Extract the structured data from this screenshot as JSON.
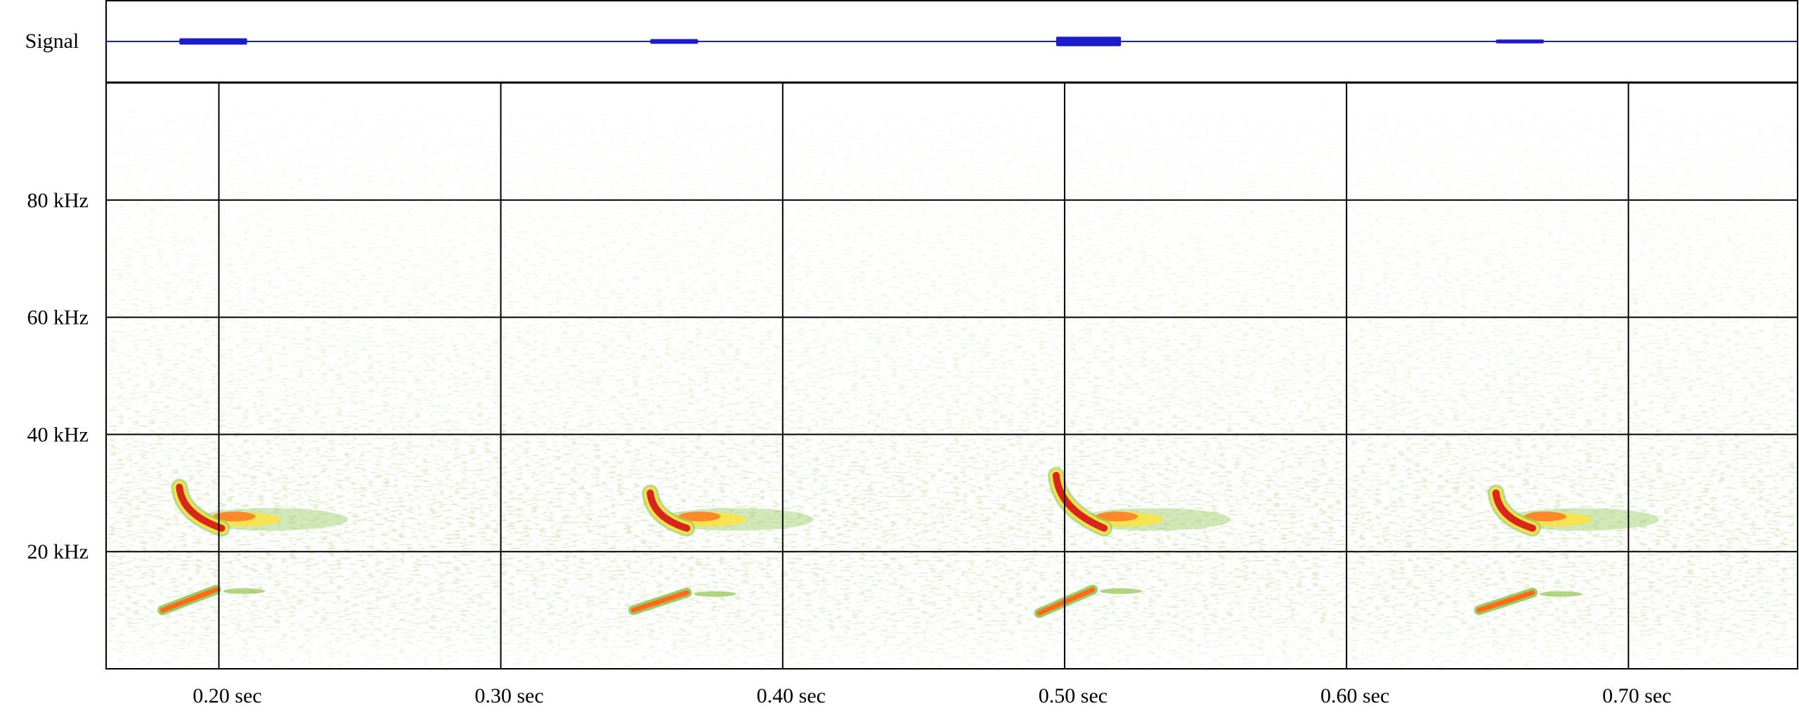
{
  "chart_data": [
    {
      "type": "line",
      "panel": "waveform",
      "ylabel": "Signal",
      "series": [
        {
          "color": "#1c1cc8",
          "x": [
            0.16,
            0.21,
            0.35,
            0.37,
            0.49,
            0.52,
            0.65,
            0.67
          ],
          "amplitude": [
            0.01,
            0.08,
            0.01,
            0.06,
            0.01,
            0.12,
            0.01,
            0.05
          ]
        }
      ],
      "xlim": [
        0.16,
        0.76
      ]
    },
    {
      "type": "heatmap",
      "panel": "spectrogram",
      "x_unit": "sec",
      "y_unit": "kHz",
      "xlim": [
        0.16,
        0.76
      ],
      "ylim": [
        0,
        100
      ],
      "x_ticks": [
        0.2,
        0.3,
        0.4,
        0.5,
        0.6,
        0.7
      ],
      "x_tick_labels": [
        "0.20 sec",
        "0.30 sec",
        "0.40 sec",
        "0.50 sec",
        "0.60 sec",
        "0.70 sec"
      ],
      "y_ticks": [
        20,
        40,
        60,
        80
      ],
      "y_tick_labels": [
        "20 kHz",
        "40 kHz",
        "60 kHz",
        "80 kHz"
      ],
      "grid": true,
      "colormap": [
        "#ffffff",
        "#d9ecc0",
        "#9ccc65",
        "#ffe23a",
        "#ff6b1a",
        "#d7261e"
      ],
      "calls": [
        {
          "t_start": 0.186,
          "t_end": 0.201,
          "f_start": 31,
          "f_end": 24,
          "harmonic_f_start": 10,
          "harmonic_f_end": 13.5
        },
        {
          "t_start": 0.353,
          "t_end": 0.366,
          "f_start": 30,
          "f_end": 24,
          "harmonic_f_start": 10,
          "harmonic_f_end": 13
        },
        {
          "t_start": 0.497,
          "t_end": 0.514,
          "f_start": 33,
          "f_end": 24,
          "harmonic_f_start": 9.5,
          "harmonic_f_end": 13.5
        },
        {
          "t_start": 0.653,
          "t_end": 0.666,
          "f_start": 30,
          "f_end": 24,
          "harmonic_f_start": 10,
          "harmonic_f_end": 13
        }
      ]
    }
  ],
  "colors": {
    "waveform": "#1c1cc8",
    "grid": "#000000",
    "background": "#ffffff"
  }
}
